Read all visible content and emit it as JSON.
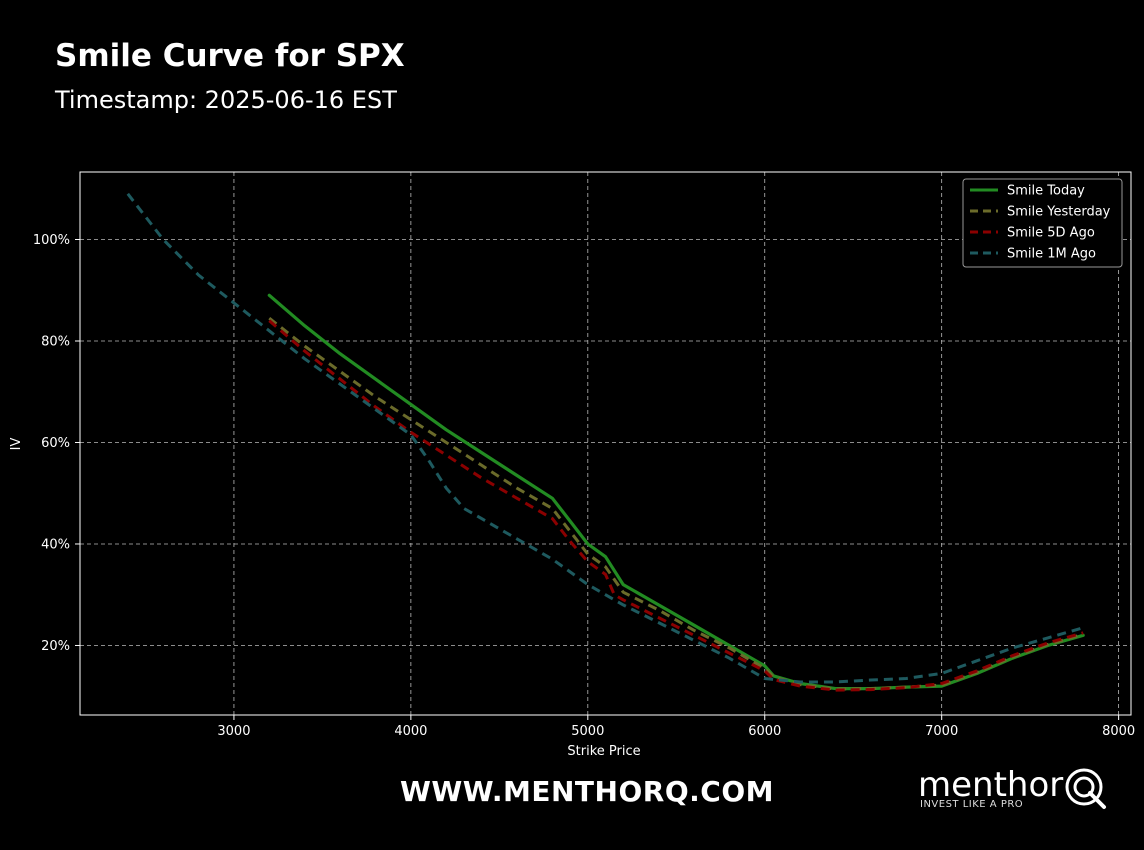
{
  "header": {
    "title": "Smile Curve for SPX",
    "subtitle": "Timestamp: 2025-06-16 EST"
  },
  "footer": {
    "url": "WWW.MENTHORQ.COM",
    "logo_word": "menthor",
    "logo_tag": "INVEST LIKE A PRO",
    "logo_icon": "q-magnifier-icon"
  },
  "chart_data": {
    "type": "line",
    "xlabel": "Strike Price",
    "ylabel": "IV",
    "xlim": [
      2130,
      8070
    ],
    "ylim": [
      0.063,
      1.133
    ],
    "xticks": [
      3000,
      4000,
      5000,
      6000,
      7000,
      8000
    ],
    "yticks": [
      0.2,
      0.4,
      0.6,
      0.8,
      1.0
    ],
    "ytick_format": "percent",
    "grid": true,
    "legend_position": "top-right",
    "series": [
      {
        "name": "Smile Today",
        "color": "#228b22",
        "style": "solid",
        "x": [
          3200,
          3400,
          3600,
          3800,
          4000,
          4200,
          4400,
          4600,
          4800,
          4900,
          5000,
          5100,
          5200,
          5400,
          5600,
          5800,
          6000,
          6050,
          6200,
          6400,
          6600,
          6800,
          7000,
          7200,
          7400,
          7600,
          7800
        ],
        "y": [
          0.89,
          0.83,
          0.775,
          0.725,
          0.675,
          0.625,
          0.58,
          0.535,
          0.49,
          0.445,
          0.4,
          0.375,
          0.32,
          0.28,
          0.24,
          0.2,
          0.16,
          0.14,
          0.125,
          0.115,
          0.115,
          0.118,
          0.12,
          0.145,
          0.175,
          0.2,
          0.22
        ]
      },
      {
        "name": "Smile Yesterday",
        "color": "#6b6b2a",
        "style": "dashed",
        "x": [
          3200,
          3400,
          3600,
          3800,
          4000,
          4200,
          4400,
          4600,
          4800,
          4900,
          5000,
          5100,
          5200,
          5400,
          5600,
          5800,
          6000,
          6050,
          6200,
          6400,
          6600,
          6800,
          7000,
          7200,
          7400,
          7600,
          7800
        ],
        "y": [
          0.845,
          0.79,
          0.74,
          0.69,
          0.645,
          0.6,
          0.555,
          0.51,
          0.47,
          0.425,
          0.38,
          0.355,
          0.305,
          0.27,
          0.23,
          0.195,
          0.155,
          0.138,
          0.123,
          0.114,
          0.115,
          0.118,
          0.122,
          0.147,
          0.177,
          0.202,
          0.222
        ]
      },
      {
        "name": "Smile 5D Ago",
        "color": "#8b0000",
        "style": "dashed",
        "x": [
          3200,
          3400,
          3600,
          3800,
          4000,
          4200,
          4400,
          4600,
          4800,
          4900,
          5000,
          5100,
          5150,
          5200,
          5400,
          5600,
          5800,
          6000,
          6050,
          6200,
          6400,
          6600,
          6800,
          7000,
          7200,
          7400,
          7600,
          7800
        ],
        "y": [
          0.84,
          0.78,
          0.725,
          0.67,
          0.62,
          0.575,
          0.53,
          0.49,
          0.45,
          0.405,
          0.365,
          0.34,
          0.3,
          0.29,
          0.255,
          0.22,
          0.185,
          0.15,
          0.133,
          0.12,
          0.112,
          0.113,
          0.117,
          0.125,
          0.15,
          0.18,
          0.205,
          0.225
        ]
      },
      {
        "name": "Smile 1M Ago",
        "color": "#1e5a5f",
        "style": "dashed",
        "x": [
          2400,
          2600,
          2800,
          3000,
          3200,
          3400,
          3600,
          3800,
          4000,
          4100,
          4200,
          4300,
          4400,
          4600,
          4800,
          5000,
          5200,
          5400,
          5600,
          5800,
          6000,
          6200,
          6400,
          6600,
          6800,
          7000,
          7200,
          7400,
          7600,
          7800
        ],
        "y": [
          1.09,
          1.0,
          0.93,
          0.875,
          0.82,
          0.765,
          0.715,
          0.665,
          0.615,
          0.565,
          0.51,
          0.47,
          0.45,
          0.41,
          0.37,
          0.32,
          0.28,
          0.245,
          0.21,
          0.175,
          0.135,
          0.128,
          0.128,
          0.132,
          0.135,
          0.145,
          0.17,
          0.195,
          0.215,
          0.235
        ]
      }
    ]
  }
}
